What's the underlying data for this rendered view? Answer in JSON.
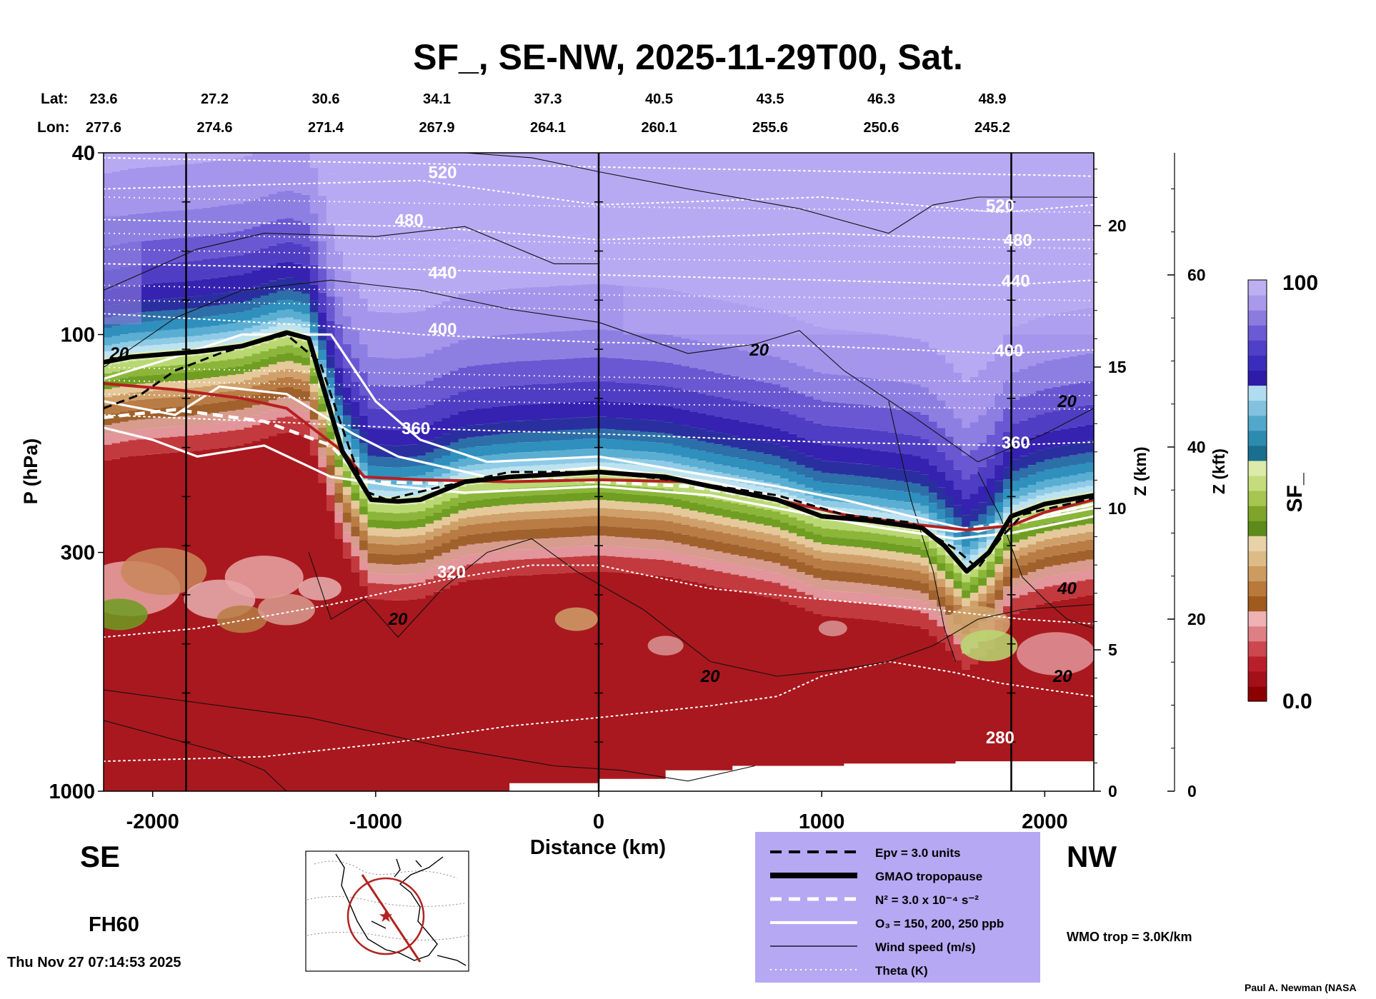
{
  "chart_data": {
    "type": "heatmap",
    "title": "SF_, SE-NW, 2025-11-29T00, Sat.",
    "xlabel": "Distance (km)",
    "ylabel": "P (hPa)",
    "z_km_label": "Z (km)",
    "z_kft_label": "Z (kft)",
    "colorbar_label": "SF_",
    "colorbar_min": "0.0",
    "colorbar_max": "100",
    "colorbar_colors": [
      "#8b0000",
      "#a3101a",
      "#b91f2b",
      "#cc4750",
      "#de7f85",
      "#eeb1b4",
      "#a05a1e",
      "#b9793a",
      "#cc9b5f",
      "#dcbb86",
      "#e8d2a8",
      "#5d8a1a",
      "#7ea52a",
      "#a6c551",
      "#c5dc7c",
      "#dcebaa",
      "#1a6e8e",
      "#2d8bb0",
      "#52a8cb",
      "#82c2df",
      "#b0dcef",
      "#2e1ba8",
      "#3b2dbb",
      "#5040c8",
      "#6c5ad4",
      "#8c7bdf",
      "#a999ea",
      "#bcb0f0"
    ],
    "lat_label": "Lat:",
    "lon_label": "Lon:",
    "lat_values": [
      "23.6",
      "27.2",
      "30.6",
      "34.1",
      "37.3",
      "40.5",
      "43.5",
      "46.3",
      "48.9"
    ],
    "lon_values": [
      "277.6",
      "274.6",
      "271.4",
      "267.9",
      "264.1",
      "260.1",
      "255.6",
      "250.6",
      "245.2"
    ],
    "x_ticks": [
      -2000,
      -1000,
      0,
      1000,
      2000
    ],
    "xlim": [
      -2220,
      2220
    ],
    "vertical_lines_km": [
      -1850,
      0,
      1850
    ],
    "p_ticks": [
      {
        "value": 40,
        "label": "40"
      },
      {
        "value": 100,
        "label": "100"
      },
      {
        "value": 300,
        "label": "300"
      },
      {
        "value": 1000,
        "label": "1000"
      }
    ],
    "z_km_ticks": [
      0,
      5,
      10,
      15,
      20
    ],
    "z_kft_ticks": [
      0,
      20,
      40,
      60
    ],
    "tropopause_km": [
      [
        -2220,
        115
      ],
      [
        -2100,
        112
      ],
      [
        -1800,
        109
      ],
      [
        -1600,
        106
      ],
      [
        -1400,
        99
      ],
      [
        -1300,
        102
      ],
      [
        -1150,
        180
      ],
      [
        -1020,
        230
      ],
      [
        -900,
        232
      ],
      [
        -800,
        230
      ],
      [
        -600,
        210
      ],
      [
        -400,
        205
      ],
      [
        0,
        200
      ],
      [
        300,
        205
      ],
      [
        500,
        215
      ],
      [
        800,
        230
      ],
      [
        1000,
        250
      ],
      [
        1200,
        255
      ],
      [
        1450,
        265
      ],
      [
        1550,
        290
      ],
      [
        1650,
        330
      ],
      [
        1750,
        300
      ],
      [
        1850,
        250
      ],
      [
        2000,
        235
      ],
      [
        2220,
        225
      ]
    ],
    "pv_line_km": [
      [
        -2220,
        145
      ],
      [
        -2050,
        135
      ],
      [
        -1900,
        120
      ],
      [
        -1700,
        110
      ],
      [
        -1400,
        100
      ],
      [
        -1250,
        115
      ],
      [
        -1150,
        160
      ],
      [
        -1050,
        220
      ],
      [
        -950,
        230
      ],
      [
        -700,
        215
      ],
      [
        -400,
        200
      ],
      [
        0,
        200
      ],
      [
        400,
        210
      ],
      [
        800,
        225
      ],
      [
        1100,
        248
      ],
      [
        1400,
        258
      ],
      [
        1600,
        295
      ],
      [
        1700,
        325
      ],
      [
        1800,
        280
      ],
      [
        1900,
        248
      ],
      [
        2220,
        228
      ]
    ],
    "wmo_trop_km": [
      [
        -2220,
        128
      ],
      [
        -1900,
        132
      ],
      [
        -1600,
        138
      ],
      [
        -1400,
        145
      ],
      [
        -1150,
        180
      ],
      [
        -1050,
        205
      ],
      [
        -800,
        208
      ],
      [
        -400,
        210
      ],
      [
        0,
        208
      ],
      [
        400,
        210
      ],
      [
        800,
        230
      ],
      [
        1100,
        248
      ],
      [
        1400,
        260
      ],
      [
        1650,
        268
      ],
      [
        1850,
        262
      ],
      [
        2000,
        245
      ],
      [
        2220,
        230
      ]
    ],
    "n2_line_km": [
      [
        -2220,
        152
      ],
      [
        -1900,
        146
      ],
      [
        -1500,
        155
      ],
      [
        -1200,
        175
      ],
      [
        -1050,
        210
      ],
      [
        -700,
        212
      ],
      [
        -400,
        205
      ],
      [
        0,
        210
      ],
      [
        400,
        215
      ],
      [
        800,
        230
      ],
      [
        1200,
        255
      ],
      [
        1600,
        268
      ],
      [
        1850,
        258
      ],
      [
        2220,
        235
      ]
    ],
    "o3_lines_km": [
      [
        [
          -2220,
          125
        ],
        [
          -1900,
          112
        ],
        [
          -1600,
          100
        ],
        [
          -1200,
          100
        ],
        [
          -1000,
          140
        ],
        [
          -800,
          170
        ],
        [
          -500,
          190
        ],
        [
          0,
          185
        ],
        [
          400,
          200
        ],
        [
          800,
          215
        ],
        [
          1100,
          230
        ],
        [
          1400,
          250
        ],
        [
          1700,
          270
        ],
        [
          1900,
          255
        ],
        [
          2220,
          235
        ]
      ],
      [
        [
          -2220,
          140
        ],
        [
          -1900,
          150
        ],
        [
          -1700,
          130
        ],
        [
          -1400,
          135
        ],
        [
          -1100,
          165
        ],
        [
          -900,
          185
        ],
        [
          -500,
          205
        ],
        [
          0,
          195
        ],
        [
          500,
          210
        ],
        [
          900,
          232
        ],
        [
          1200,
          252
        ],
        [
          1600,
          270
        ],
        [
          1850,
          260
        ],
        [
          2220,
          240
        ]
      ],
      [
        [
          -2220,
          160
        ],
        [
          -2000,
          170
        ],
        [
          -1800,
          185
        ],
        [
          -1500,
          175
        ],
        [
          -1200,
          205
        ],
        [
          -900,
          215
        ],
        [
          -600,
          222
        ],
        [
          0,
          215
        ],
        [
          500,
          225
        ],
        [
          900,
          245
        ],
        [
          1200,
          262
        ],
        [
          1600,
          280
        ],
        [
          1850,
          272
        ],
        [
          2220,
          250
        ]
      ]
    ],
    "theta_lines": [
      {
        "label": "",
        "p_km": [
          [
            -2220,
            41
          ],
          [
            2220,
            45
          ]
        ]
      },
      {
        "label": "520",
        "p_km": [
          [
            -2220,
            48
          ],
          [
            -800,
            46
          ],
          [
            0,
            52
          ],
          [
            1000,
            50
          ],
          [
            1800,
            54
          ],
          [
            2220,
            52
          ]
        ]
      },
      {
        "label": "480",
        "p_km": [
          [
            -2220,
            56
          ],
          [
            -800,
            58
          ],
          [
            0,
            62
          ],
          [
            1000,
            60
          ],
          [
            1800,
            62
          ],
          [
            2220,
            62
          ]
        ]
      },
      {
        "label": "440",
        "p_km": [
          [
            -2220,
            70
          ],
          [
            -800,
            72
          ],
          [
            0,
            74
          ],
          [
            1000,
            76
          ],
          [
            1800,
            78
          ],
          [
            2220,
            76
          ]
        ]
      },
      {
        "label": "400",
        "p_km": [
          [
            -2220,
            90
          ],
          [
            -1200,
            96
          ],
          [
            -800,
            100
          ],
          [
            0,
            104
          ],
          [
            1000,
            106
          ],
          [
            1800,
            110
          ],
          [
            2220,
            108
          ]
        ]
      },
      {
        "label": "360",
        "p_km": [
          [
            -2220,
            150
          ],
          [
            -1500,
            155
          ],
          [
            -900,
            160
          ],
          [
            0,
            165
          ],
          [
            1000,
            172
          ],
          [
            1800,
            175
          ],
          [
            2220,
            172
          ]
        ]
      },
      {
        "label": "320",
        "p_km": [
          [
            -2220,
            460
          ],
          [
            -1800,
            440
          ],
          [
            -1200,
            390
          ],
          [
            -700,
            345
          ],
          [
            -300,
            320
          ],
          [
            0,
            320
          ],
          [
            500,
            360
          ],
          [
            1000,
            380
          ],
          [
            1500,
            400
          ],
          [
            1900,
            420
          ],
          [
            2220,
            430
          ]
        ]
      },
      {
        "label": "280",
        "p_km": [
          [
            -2220,
            860
          ],
          [
            -1500,
            840
          ],
          [
            -900,
            780
          ],
          [
            -400,
            720
          ],
          [
            0,
            690
          ],
          [
            500,
            650
          ],
          [
            800,
            620
          ],
          [
            1000,
            560
          ],
          [
            1300,
            520
          ],
          [
            1600,
            550
          ],
          [
            1800,
            580
          ],
          [
            2220,
            620
          ]
        ]
      }
    ],
    "theta_label_positions_km": [
      [
        -700,
        44
      ],
      [
        -850,
        56
      ],
      [
        -700,
        73
      ],
      [
        -700,
        97
      ],
      [
        -820,
        160
      ],
      [
        -660,
        330
      ],
      [
        1800,
        760
      ]
    ],
    "wind_labels": [
      {
        "label": "20",
        "x": -2150,
        "p": 110
      },
      {
        "label": "20",
        "x": 720,
        "p": 108
      },
      {
        "label": "20",
        "x": 2100,
        "p": 140
      },
      {
        "label": "20",
        "x": -900,
        "p": 420
      },
      {
        "label": "20",
        "x": 500,
        "p": 560
      },
      {
        "label": "20",
        "x": 2080,
        "p": 560
      },
      {
        "label": "40",
        "x": 2100,
        "p": 360
      }
    ],
    "surface_km": [
      [
        -600,
        1000
      ],
      [
        -400,
        960
      ],
      [
        0,
        940
      ],
      [
        300,
        900
      ],
      [
        600,
        880
      ],
      [
        1100,
        870
      ],
      [
        1600,
        860
      ],
      [
        2220,
        850
      ]
    ],
    "map_cross_section": "SE-NW",
    "legend": [
      {
        "style": "dashed-black",
        "label": "Epv = 3.0 units"
      },
      {
        "style": "thick-black",
        "label": "GMAO tropopause"
      },
      {
        "style": "dashed-white",
        "label": "N² = 3.0 x 10⁻⁴ s⁻²"
      },
      {
        "style": "solid-white",
        "label": "O₃ = 150, 200, 250 ppb"
      },
      {
        "style": "thin-black",
        "label": "Wind speed (m/s)"
      },
      {
        "style": "dotted-white",
        "label": "Theta (K)"
      }
    ]
  },
  "labels": {
    "se": "SE",
    "nw": "NW",
    "fh": "FH60",
    "wmo": "WMO trop = 3.0K/km",
    "timestamp": "Thu Nov 27 07:14:53 2025",
    "credit": "Paul A. Newman (NASA"
  },
  "colors": {
    "legend_bg": "#b6a8f3",
    "wmo_red": "#b52020",
    "trop_black": "#000000"
  }
}
